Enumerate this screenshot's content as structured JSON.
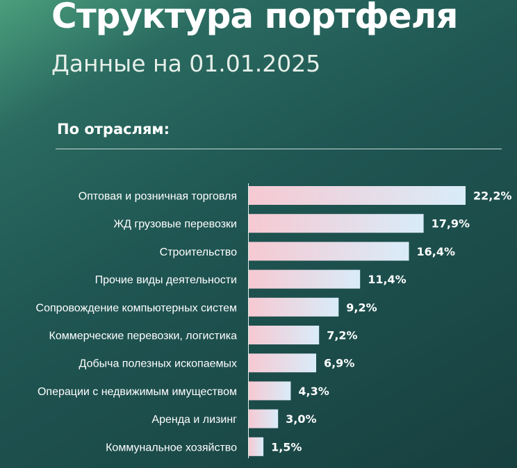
{
  "header": {
    "title": "Структура портфеля",
    "subtitle": "Данные на 01.01.2025"
  },
  "section": {
    "title": "По отраслям:"
  },
  "colors": {
    "bar_start": "#f6c9d2",
    "bar_end": "#d9ecf9"
  },
  "chart_data": {
    "type": "bar",
    "orientation": "horizontal",
    "categories": [
      "Оптовая и розничная торговля",
      "ЖД грузовые перевозки",
      "Строительство",
      "Прочие виды деятельности",
      "Сопровождение компьютерных систем",
      "Коммерческие перевозки, логистика",
      "Добыча полезных ископаемых",
      "Операции с недвижимым имуществом",
      "Аренда и лизинг",
      "Коммунальное хозяйство"
    ],
    "values": [
      22.2,
      17.9,
      16.4,
      11.4,
      9.2,
      7.2,
      6.9,
      4.3,
      3.0,
      1.5
    ],
    "value_labels": [
      "22,2%",
      "17,9%",
      "16,4%",
      "11,4%",
      "9,2%",
      "7,2%",
      "6,9%",
      "4,3%",
      "3,0%",
      "1,5%"
    ],
    "unit": "%",
    "xlim": [
      0,
      22.2
    ],
    "grid": false,
    "legend": "none"
  }
}
